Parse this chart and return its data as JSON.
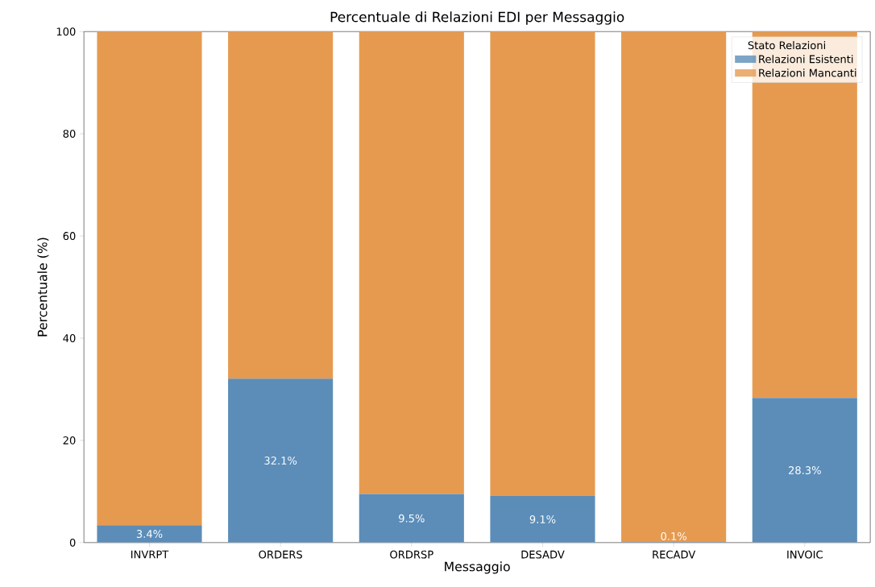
{
  "chart_data": {
    "type": "bar",
    "title": "Percentuale di Relazioni EDI per Messaggio",
    "xlabel": "Messaggio",
    "ylabel": "Percentuale (%)",
    "legend_title": "Stato Relazioni",
    "categories": [
      "INVRPT",
      "ORDERS",
      "ORDRSP",
      "DESADV",
      "RECADV",
      "INVOIC"
    ],
    "series": [
      {
        "name": "Relazioni Esistenti",
        "color": "#5b8db8",
        "values": [
          3.4,
          32.1,
          9.5,
          9.1,
          0.1,
          28.3
        ],
        "value_labels": [
          "3.4%",
          "32.1%",
          "9.5%",
          "9.1%",
          "0.1%",
          "28.3%"
        ]
      },
      {
        "name": "Relazioni Mancanti",
        "color": "#e69a50",
        "values": [
          96.6,
          67.9,
          90.5,
          90.9,
          99.9,
          71.7
        ]
      }
    ],
    "stacked": true,
    "ylim": [
      0,
      100
    ],
    "yticks": [
      0,
      20,
      40,
      60,
      80,
      100
    ],
    "grid": false,
    "legend": "top right"
  }
}
